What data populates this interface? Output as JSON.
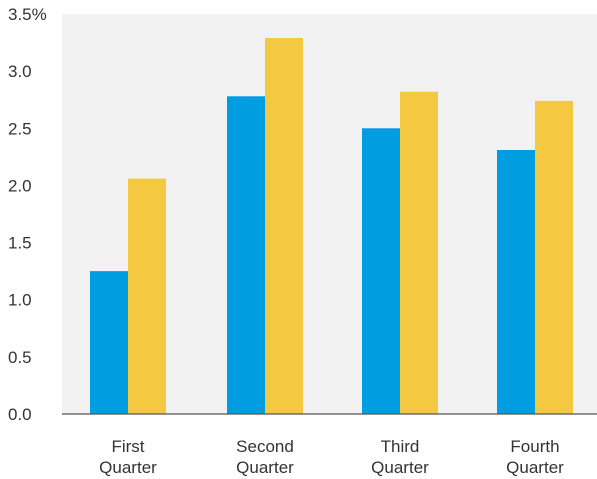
{
  "chart_data": {
    "type": "bar",
    "categories": [
      "First Quarter",
      "Second Quarter",
      "Third Quarter",
      "Fourth Quarter"
    ],
    "category_lines": [
      [
        "First",
        "Quarter"
      ],
      [
        "Second",
        "Quarter"
      ],
      [
        "Third",
        "Quarter"
      ],
      [
        "Fourth",
        "Quarter"
      ]
    ],
    "series": [
      {
        "color": "#009ee0",
        "values": [
          1.25,
          2.78,
          2.5,
          2.31
        ]
      },
      {
        "color": "#f5c842",
        "values": [
          2.06,
          3.29,
          2.82,
          2.74
        ]
      }
    ],
    "ylim": [
      0,
      3.5
    ],
    "yticks": [
      "0.0",
      "0.5",
      "1.0",
      "1.5",
      "2.0",
      "2.5",
      "3.0",
      "3.5%"
    ],
    "ytick_values": [
      0,
      0.5,
      1,
      1.5,
      2,
      2.5,
      3,
      3.5
    ],
    "title": "",
    "xlabel": "",
    "ylabel": "",
    "grid": false,
    "legend": "none"
  }
}
